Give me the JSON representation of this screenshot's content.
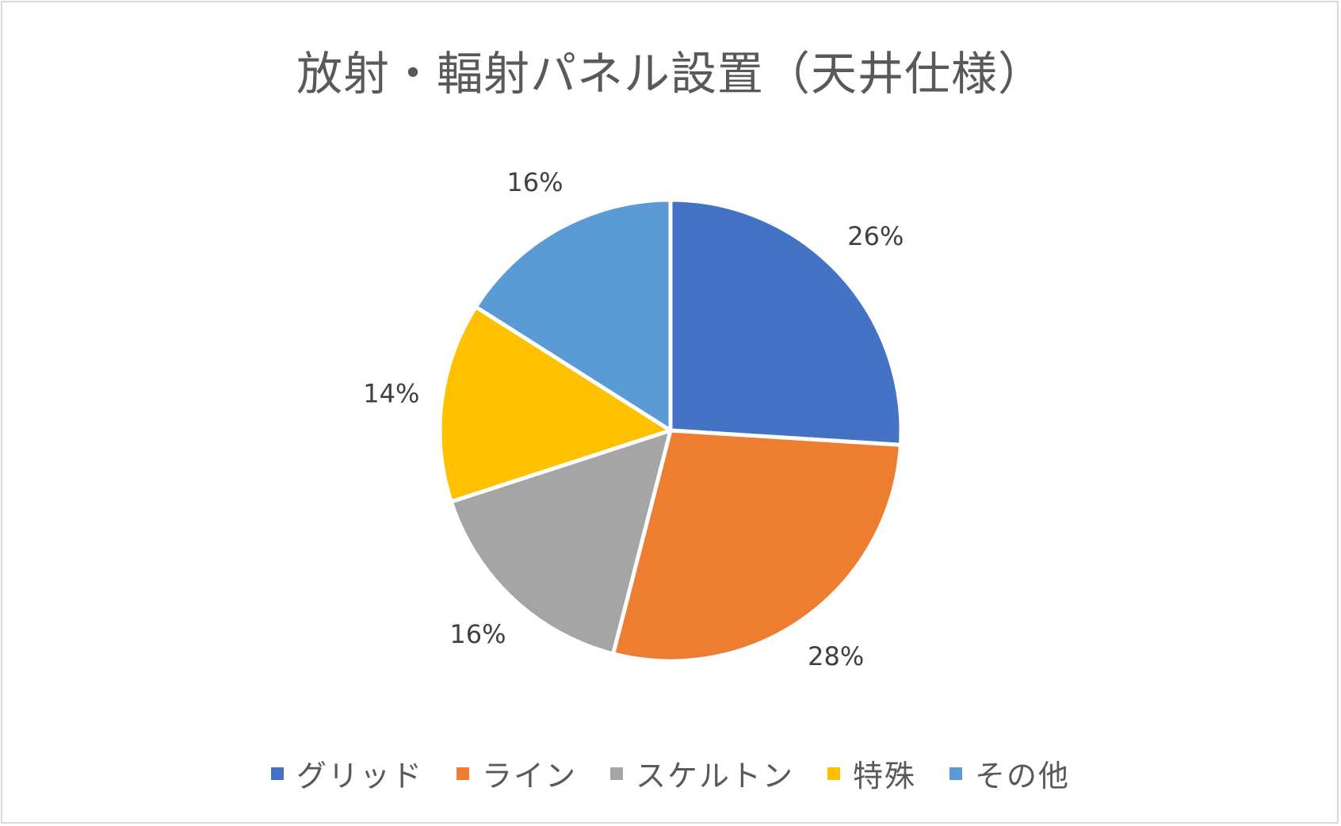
{
  "chart_data": {
    "type": "pie",
    "title": "放射・輻射パネル設置（天井仕様）",
    "categories": [
      "グリッド",
      "ライン",
      "スケルトン",
      "特殊",
      "その他"
    ],
    "values": [
      26,
      28,
      16,
      14,
      16
    ],
    "labels": [
      "26%",
      "28%",
      "16%",
      "14%",
      "16%"
    ],
    "colors": [
      "#4472C4",
      "#ED7D31",
      "#A5A5A5",
      "#FFC000",
      "#5B9BD5"
    ],
    "legend_position": "bottom"
  }
}
